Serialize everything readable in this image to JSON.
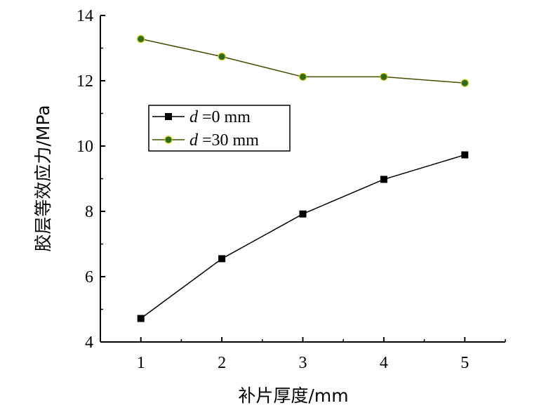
{
  "chart_data": {
    "type": "line",
    "xlabel": "补片厚度/mm",
    "ylabel": "胶层等效应力/MPa",
    "xlim": [
      0.5,
      5.5
    ],
    "ylim": [
      4,
      14
    ],
    "x_ticks": [
      1,
      2,
      3,
      4,
      5
    ],
    "y_ticks": [
      4,
      6,
      8,
      10,
      12,
      14
    ],
    "legend_position": "upper-left",
    "series": [
      {
        "name": "d =0 mm",
        "name_var": "d",
        "name_rest": " =0 mm",
        "marker": "square",
        "color": "#000000",
        "marker_fill": "#000000",
        "x": [
          1,
          2,
          3,
          4,
          5
        ],
        "values": [
          4.72,
          6.55,
          7.92,
          8.98,
          9.73
        ]
      },
      {
        "name": "d =30 mm",
        "name_var": "d",
        "name_rest": " =30 mm",
        "marker": "circle",
        "color": "#4a4a00",
        "marker_fill": "#2f6b1e",
        "x": [
          1,
          2,
          3,
          4,
          5
        ],
        "values": [
          13.28,
          12.74,
          12.12,
          12.12,
          11.93
        ]
      }
    ]
  }
}
